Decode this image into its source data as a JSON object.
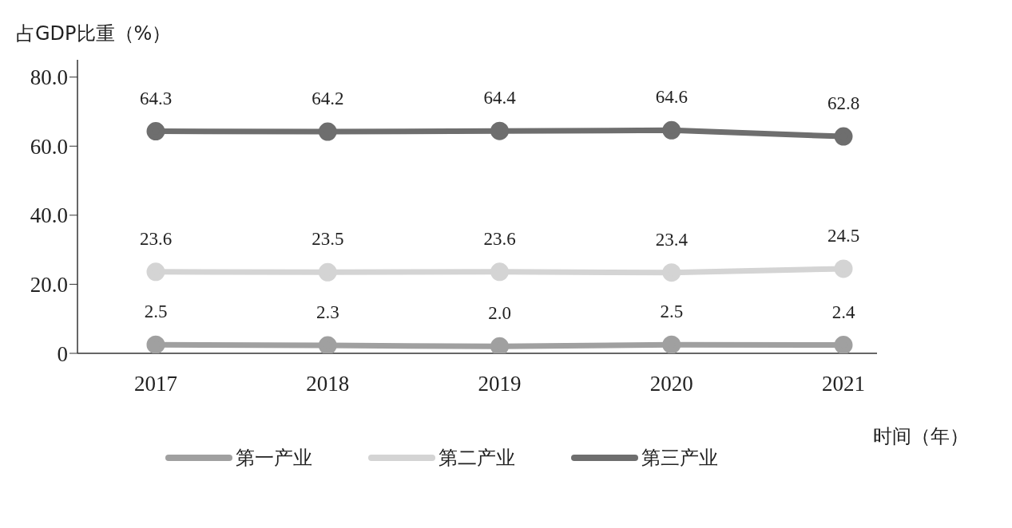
{
  "chart_data": {
    "type": "line",
    "ylabel": "占GDP比重（%）",
    "xlabel": "时间（年）",
    "categories": [
      "2017",
      "2018",
      "2019",
      "2020",
      "2021"
    ],
    "series": [
      {
        "name": "第一产业",
        "color": "#a0a0a0",
        "values": [
          2.5,
          2.3,
          2.0,
          2.5,
          2.4
        ],
        "value_labels": [
          "2.5",
          "2.3",
          "2.0",
          "2.5",
          "2.4"
        ]
      },
      {
        "name": "第二产业",
        "color": "#d4d4d4",
        "values": [
          23.6,
          23.5,
          23.6,
          23.4,
          24.5
        ],
        "value_labels": [
          "23.6",
          "23.5",
          "23.6",
          "23.4",
          "24.5"
        ]
      },
      {
        "name": "第三产业",
        "color": "#6e6e6e",
        "values": [
          64.3,
          64.2,
          64.4,
          64.6,
          62.8
        ],
        "value_labels": [
          "64.3",
          "64.2",
          "64.4",
          "64.6",
          "62.8"
        ]
      }
    ],
    "ylim": [
      0,
      85
    ],
    "yticks": [
      {
        "value": 0,
        "label": "0"
      },
      {
        "value": 20,
        "label": "20.0"
      },
      {
        "value": 40,
        "label": "40.0"
      },
      {
        "value": 60,
        "label": "60.0"
      },
      {
        "value": 80,
        "label": "80.0"
      }
    ],
    "grid": false,
    "legend": "bottom",
    "marker": "circle",
    "line_style": "solid"
  }
}
